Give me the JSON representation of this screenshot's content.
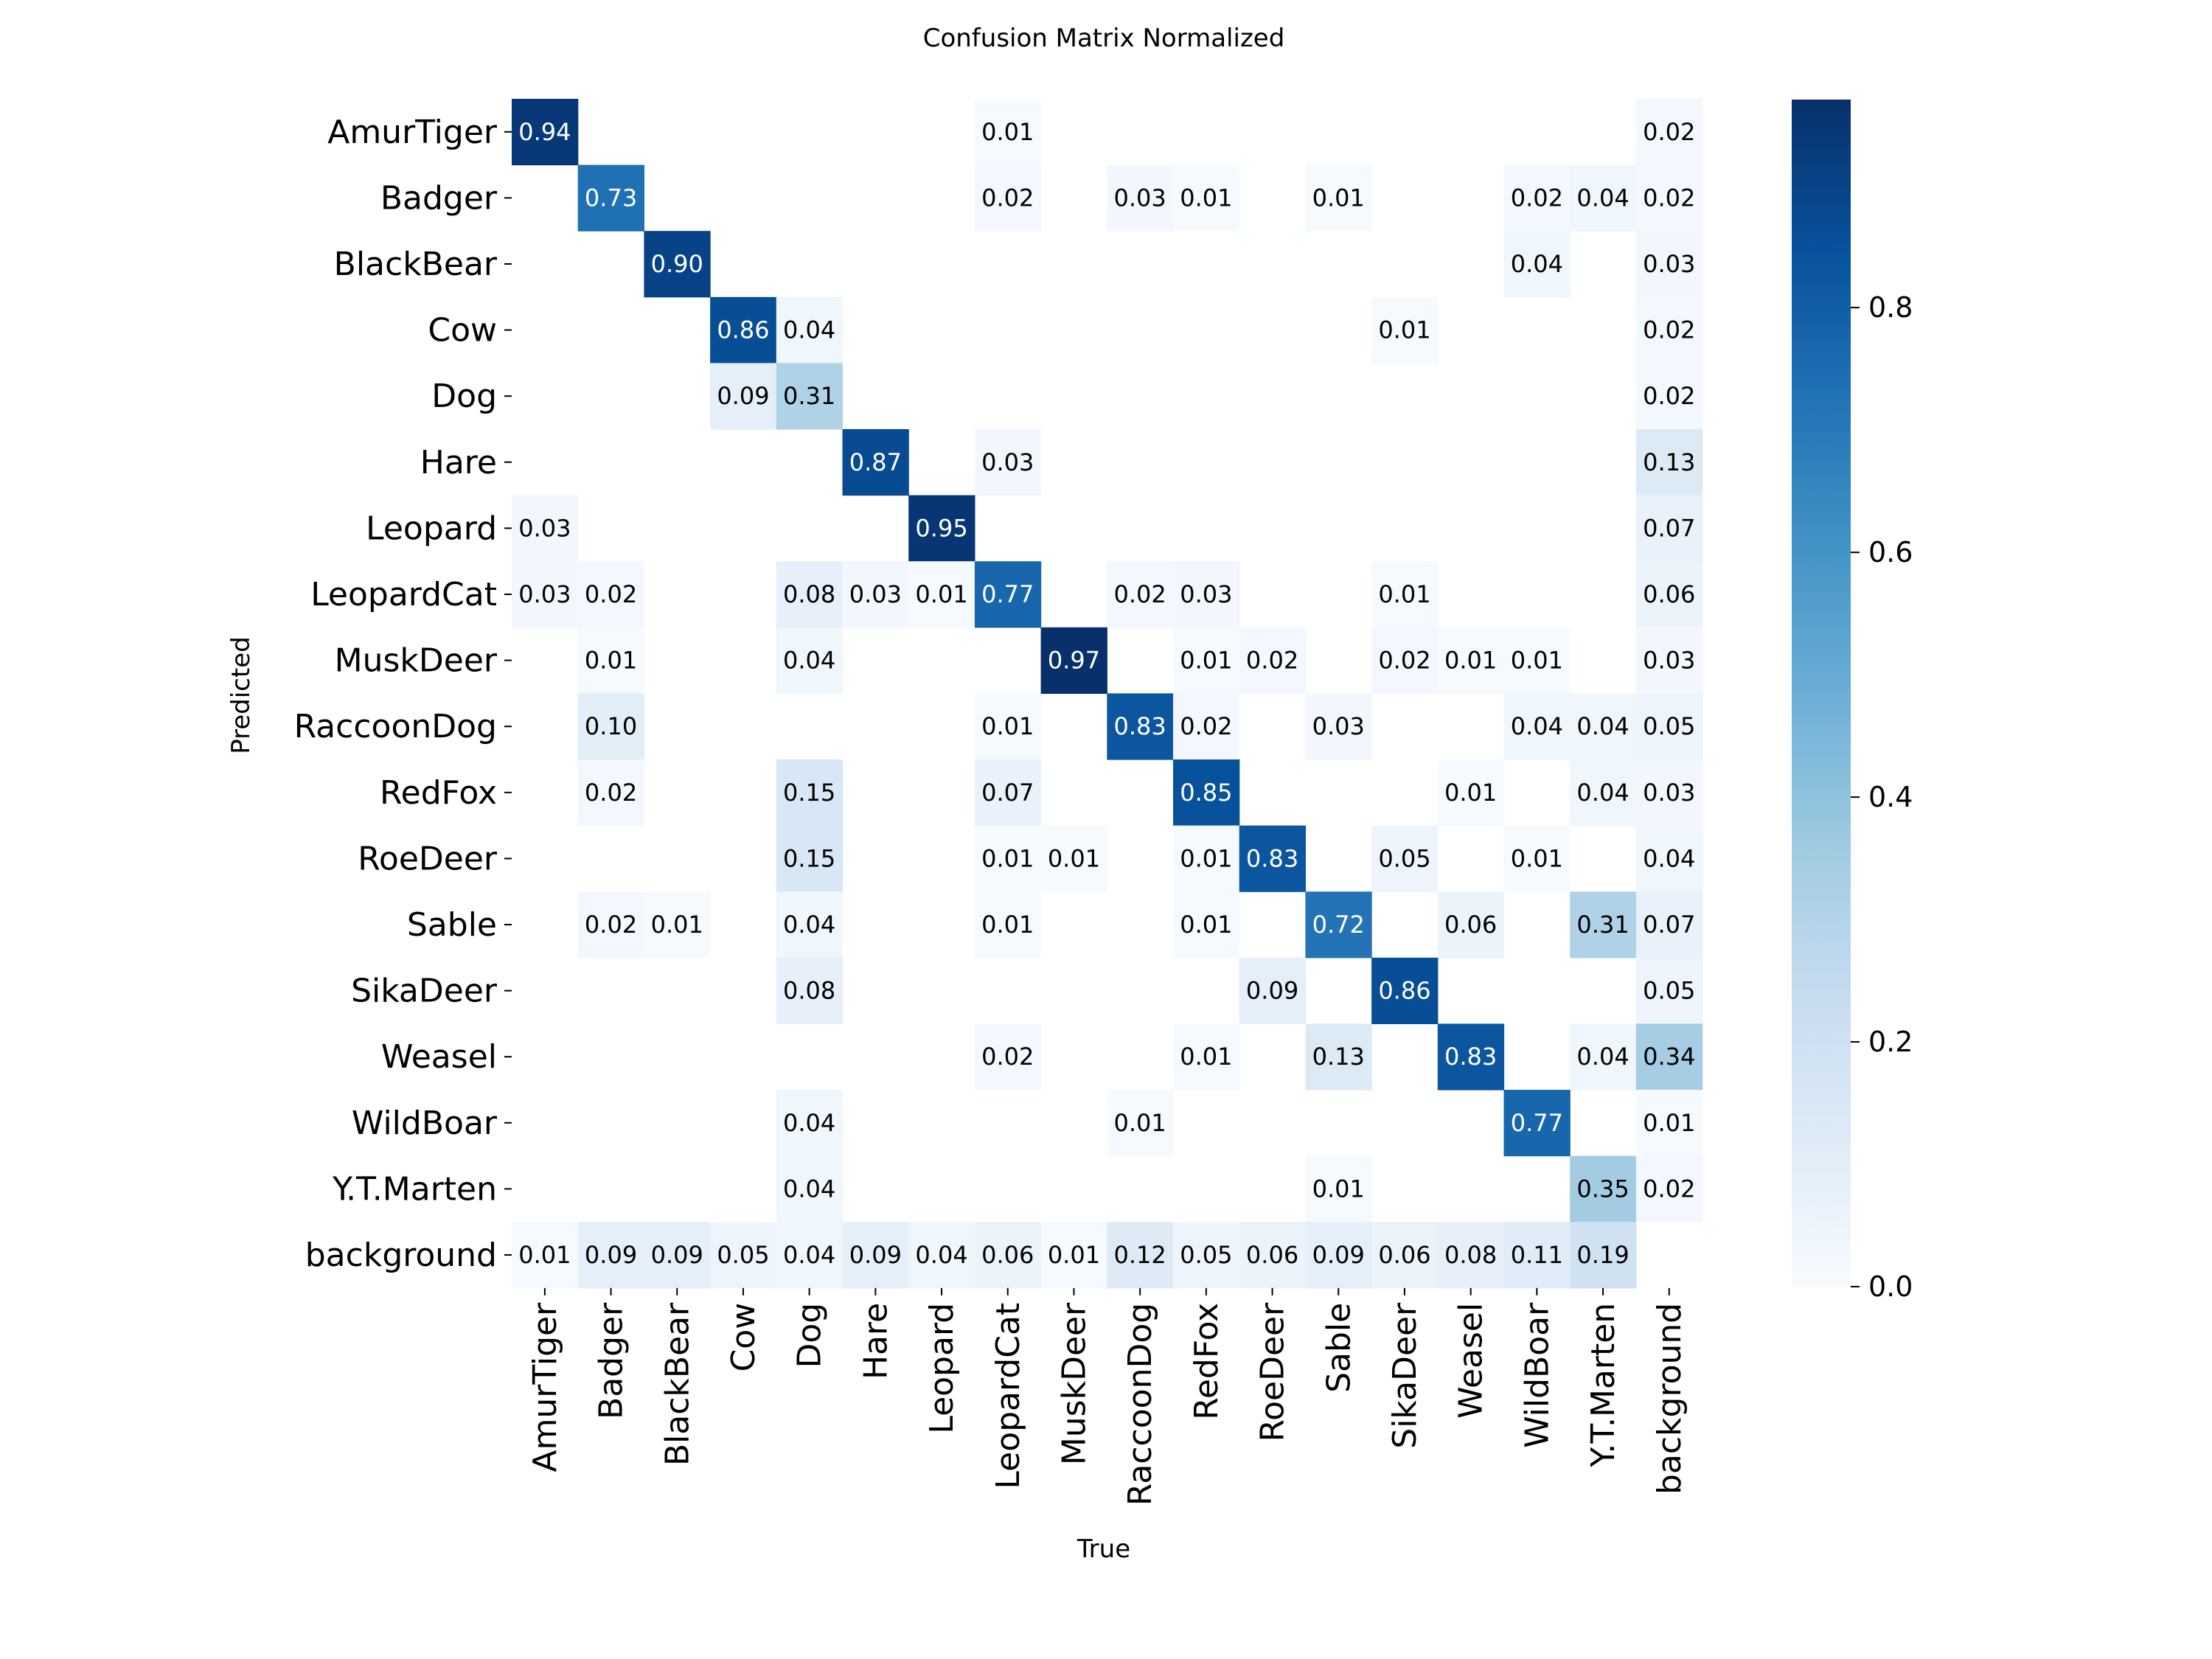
{
  "chart_data": {
    "type": "heatmap",
    "title": "Confusion Matrix Normalized",
    "xlabel": "True",
    "ylabel": "Predicted",
    "x_categories": [
      "AmurTiger",
      "Badger",
      "BlackBear",
      "Cow",
      "Dog",
      "Hare",
      "Leopard",
      "LeopardCat",
      "MuskDeer",
      "RaccoonDog",
      "RedFox",
      "RoeDeer",
      "Sable",
      "SikaDeer",
      "Weasel",
      "WildBoar",
      "Y.T.Marten",
      "background"
    ],
    "y_categories": [
      "AmurTiger",
      "Badger",
      "BlackBear",
      "Cow",
      "Dog",
      "Hare",
      "Leopard",
      "LeopardCat",
      "MuskDeer",
      "RaccoonDog",
      "RedFox",
      "RoeDeer",
      "Sable",
      "SikaDeer",
      "Weasel",
      "WildBoar",
      "Y.T.Marten",
      "background"
    ],
    "values": [
      [
        0.94,
        null,
        null,
        null,
        null,
        null,
        null,
        0.01,
        null,
        null,
        null,
        null,
        null,
        null,
        null,
        null,
        null,
        0.02
      ],
      [
        null,
        0.73,
        null,
        null,
        null,
        null,
        null,
        0.02,
        null,
        0.03,
        0.01,
        null,
        0.01,
        null,
        null,
        0.02,
        0.04,
        0.02
      ],
      [
        null,
        null,
        0.9,
        null,
        null,
        null,
        null,
        null,
        null,
        null,
        null,
        null,
        null,
        null,
        null,
        0.04,
        null,
        0.03
      ],
      [
        null,
        null,
        null,
        0.86,
        0.04,
        null,
        null,
        null,
        null,
        null,
        null,
        null,
        null,
        0.01,
        null,
        null,
        null,
        0.02
      ],
      [
        null,
        null,
        null,
        0.09,
        0.31,
        null,
        null,
        null,
        null,
        null,
        null,
        null,
        null,
        null,
        null,
        null,
        null,
        0.02
      ],
      [
        null,
        null,
        null,
        null,
        null,
        0.87,
        null,
        0.03,
        null,
        null,
        null,
        null,
        null,
        null,
        null,
        null,
        null,
        0.13
      ],
      [
        0.03,
        null,
        null,
        null,
        null,
        null,
        0.95,
        null,
        null,
        null,
        null,
        null,
        null,
        null,
        null,
        null,
        null,
        0.07
      ],
      [
        0.03,
        0.02,
        null,
        null,
        0.08,
        0.03,
        0.01,
        0.77,
        null,
        0.02,
        0.03,
        null,
        null,
        0.01,
        null,
        null,
        null,
        0.06
      ],
      [
        null,
        0.01,
        null,
        null,
        0.04,
        null,
        null,
        null,
        0.97,
        null,
        0.01,
        0.02,
        null,
        0.02,
        0.01,
        0.01,
        null,
        0.03
      ],
      [
        null,
        0.1,
        null,
        null,
        null,
        null,
        null,
        0.01,
        null,
        0.83,
        0.02,
        null,
        0.03,
        null,
        null,
        0.04,
        0.04,
        0.05
      ],
      [
        null,
        0.02,
        null,
        null,
        0.15,
        null,
        null,
        0.07,
        null,
        null,
        0.85,
        null,
        null,
        null,
        0.01,
        null,
        0.04,
        0.03
      ],
      [
        null,
        null,
        null,
        null,
        0.15,
        null,
        null,
        0.01,
        0.01,
        null,
        0.01,
        0.83,
        null,
        0.05,
        null,
        0.01,
        null,
        0.04
      ],
      [
        null,
        0.02,
        0.01,
        null,
        0.04,
        null,
        null,
        0.01,
        null,
        null,
        0.01,
        null,
        0.72,
        null,
        0.06,
        null,
        0.31,
        0.07
      ],
      [
        null,
        null,
        null,
        null,
        0.08,
        null,
        null,
        null,
        null,
        null,
        null,
        0.09,
        null,
        0.86,
        null,
        null,
        null,
        0.05
      ],
      [
        null,
        null,
        null,
        null,
        null,
        null,
        null,
        0.02,
        null,
        null,
        0.01,
        null,
        0.13,
        null,
        0.83,
        null,
        0.04,
        0.34
      ],
      [
        null,
        null,
        null,
        null,
        0.04,
        null,
        null,
        null,
        null,
        0.01,
        null,
        null,
        null,
        null,
        null,
        0.77,
        null,
        0.01
      ],
      [
        null,
        null,
        null,
        null,
        0.04,
        null,
        null,
        null,
        null,
        null,
        null,
        null,
        0.01,
        null,
        null,
        null,
        0.35,
        0.02
      ],
      [
        0.01,
        0.09,
        0.09,
        0.05,
        0.04,
        0.09,
        0.04,
        0.06,
        0.01,
        0.12,
        0.05,
        0.06,
        0.09,
        0.06,
        0.08,
        0.11,
        0.19,
        null
      ]
    ],
    "value_format": "0.00",
    "colormap": "Blues",
    "colormap_stops": [
      "#f7fbff",
      "#deebf7",
      "#c6dbef",
      "#9ecae1",
      "#6baed6",
      "#4292c6",
      "#2171b5",
      "#08519c",
      "#08306b"
    ],
    "vmin": 0.0,
    "vmax": 0.97,
    "colorbar_ticks": [
      0.0,
      0.2,
      0.4,
      0.6,
      0.8
    ],
    "colorbar_tick_labels": [
      "0.0",
      "0.2",
      "0.4",
      "0.6",
      "0.8"
    ],
    "annotation_dark_color": "#000000",
    "annotation_light_color": "#ffffff"
  }
}
